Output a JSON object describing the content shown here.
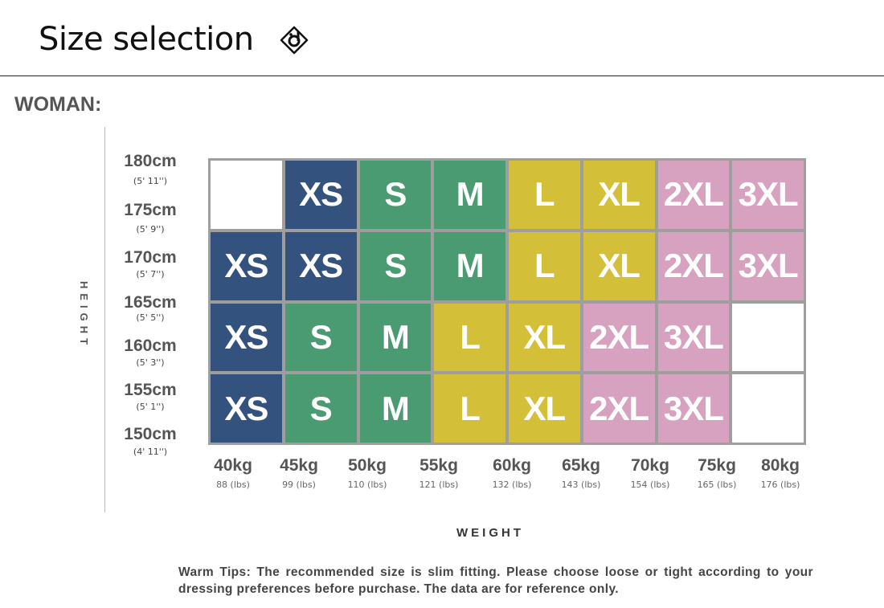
{
  "header": {
    "title": "Size selection",
    "logo_icon": "diamond-logo-icon"
  },
  "section": "WOMAN:",
  "axes": {
    "height_label": "HEIGHT",
    "weight_label": "WEIGHT"
  },
  "heights": [
    {
      "cm": "180cm",
      "ft": "(5' 11'')"
    },
    {
      "cm": "175cm",
      "ft": "(5' 9'')"
    },
    {
      "cm": "170cm",
      "ft": "(5' 7'')"
    },
    {
      "cm": "165cm",
      "ft": "(5' 5'')"
    },
    {
      "cm": "160cm",
      "ft": "(5' 3'')"
    },
    {
      "cm": "155cm",
      "ft": "(5' 1'')"
    },
    {
      "cm": "150cm",
      "ft": "(4' 11'')"
    }
  ],
  "weights": [
    {
      "kg": "40kg",
      "lbs": "88 (lbs)"
    },
    {
      "kg": "45kg",
      "lbs": "99 (lbs)"
    },
    {
      "kg": "50kg",
      "lbs": "110 (lbs)"
    },
    {
      "kg": "55kg",
      "lbs": "121 (lbs)"
    },
    {
      "kg": "60kg",
      "lbs": "132 (lbs)"
    },
    {
      "kg": "65kg",
      "lbs": "143 (lbs)"
    },
    {
      "kg": "70kg",
      "lbs": "154 (lbs)"
    },
    {
      "kg": "75kg",
      "lbs": "165 (lbs)"
    },
    {
      "kg": "80kg",
      "lbs": "176 (lbs)"
    }
  ],
  "size_colors": {
    "XS": "#34527e",
    "S": "#4a9a72",
    "M": "#4a9a72",
    "L": "#d4bf38",
    "XL": "#d4bf38",
    "2XL": "#d6a2bf",
    "3XL": "#d6a2bf",
    "": "#ffffff"
  },
  "grid": [
    [
      "",
      "XS",
      "S",
      "M",
      "L",
      "XL",
      "2XL",
      "3XL"
    ],
    [
      "XS",
      "XS",
      "S",
      "M",
      "L",
      "XL",
      "2XL",
      "3XL"
    ],
    [
      "XS",
      "S",
      "M",
      "L",
      "XL",
      "2XL",
      "3XL",
      ""
    ],
    [
      "XS",
      "S",
      "M",
      "L",
      "XL",
      "2XL",
      "3XL",
      ""
    ]
  ],
  "tips": "Warm Tips: The recommended size is slim fitting. Please choose loose or tight according to your dressing preferences before purchase. The data are for reference only."
}
